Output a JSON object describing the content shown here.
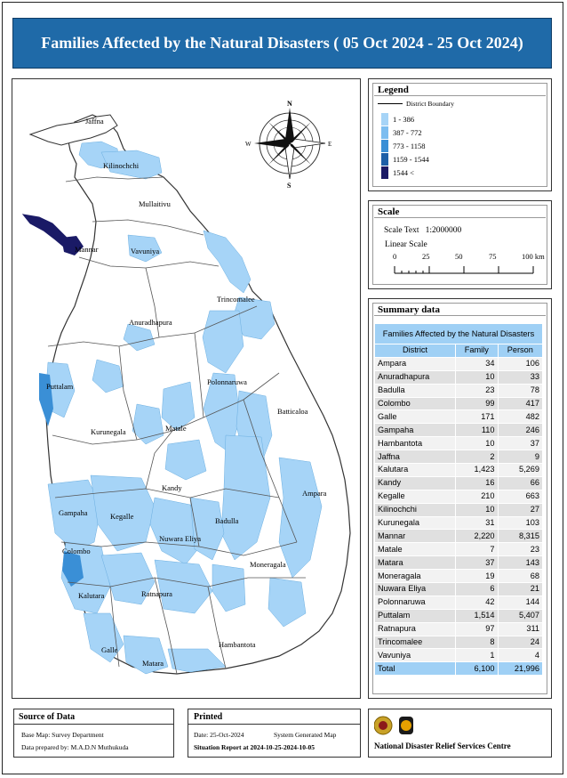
{
  "title": "Families Affected by the Natural Disasters ( 05 Oct 2024 - 25 Oct 2024)",
  "map": {
    "north_arrow": {
      "n": "N",
      "s": "S",
      "e": "E",
      "w": "W"
    },
    "labels": [
      "Jaffna",
      "Kilinochchi",
      "Mullaitivu",
      "Mannar",
      "Vavuniya",
      "Trincomalee",
      "Anuradhapura",
      "Puttalam",
      "Polonnaruwa",
      "Batticaloa",
      "Kurunegala",
      "Matale",
      "Kandy",
      "Gampaha",
      "Kegalle",
      "Ampara",
      "Badulla",
      "Nuwara Eliya",
      "Colombo",
      "Moneragala",
      "Kalutara",
      "Ratnapura",
      "Hambantota",
      "Galle",
      "Matara"
    ],
    "colors": {
      "land": "#ffffff",
      "class1": "#a6d4f7",
      "class2": "#7cbdf0",
      "class3": "#3a8fd6",
      "class4": "#1c5fa8",
      "class5": "#1a1a66",
      "border": "#555555"
    }
  },
  "legend": {
    "title": "Legend",
    "boundary_label": "District Boundary",
    "classes": [
      {
        "label": "1 - 386",
        "color": "#a6d4f7"
      },
      {
        "label": "387 - 772",
        "color": "#7cbdf0"
      },
      {
        "label": "773 - 1158",
        "color": "#3a8fd6"
      },
      {
        "label": "1159 - 1544",
        "color": "#1c5fa8"
      },
      {
        "label": "1544 <",
        "color": "#1a1a66"
      }
    ]
  },
  "scale": {
    "title": "Scale",
    "scale_text_label": "Scale Text",
    "scale_text_value": "1:2000000",
    "linear_label": "Linear Scale",
    "ticks": [
      "0",
      "25",
      "50",
      "75",
      "100 km"
    ]
  },
  "summary": {
    "title": "Summary data",
    "table_title": "Families Affected by the Natural Disasters",
    "headers": [
      "District",
      "Family",
      "Person"
    ],
    "rows": [
      [
        "Ampara",
        "34",
        "106"
      ],
      [
        "Anuradhapura",
        "10",
        "33"
      ],
      [
        "Badulla",
        "23",
        "78"
      ],
      [
        "Colombo",
        "99",
        "417"
      ],
      [
        "Galle",
        "171",
        "482"
      ],
      [
        "Gampaha",
        "110",
        "246"
      ],
      [
        "Hambantota",
        "10",
        "37"
      ],
      [
        "Jaffna",
        "2",
        "9"
      ],
      [
        "Kalutara",
        "1,423",
        "5,269"
      ],
      [
        "Kandy",
        "16",
        "66"
      ],
      [
        "Kegalle",
        "210",
        "663"
      ],
      [
        "Kilinochchi",
        "10",
        "27"
      ],
      [
        "Kurunegala",
        "31",
        "103"
      ],
      [
        "Mannar",
        "2,220",
        "8,315"
      ],
      [
        "Matale",
        "7",
        "23"
      ],
      [
        "Matara",
        "37",
        "143"
      ],
      [
        "Moneragala",
        "19",
        "68"
      ],
      [
        "Nuwara Eliya",
        "6",
        "21"
      ],
      [
        "Polonnaruwa",
        "42",
        "144"
      ],
      [
        "Puttalam",
        "1,514",
        "5,407"
      ],
      [
        "Ratnapura",
        "97",
        "311"
      ],
      [
        "Trincomalee",
        "8",
        "24"
      ],
      [
        "Vavuniya",
        "1",
        "4"
      ]
    ],
    "total": [
      "Total",
      "6,100",
      "21,996"
    ]
  },
  "source": {
    "title": "Source of Data",
    "base_map": "Base Map: Survey Department",
    "prepared_by": "Data prepared by: M.A.D.N Muthukuda"
  },
  "printed": {
    "title": "Printed",
    "date": "Date: 25-Oct-2024",
    "system": "System Generated Map",
    "report": "Situation Report at 2024-10-25-2024-10-05"
  },
  "org": {
    "name": "National Disaster Relief Services Centre"
  }
}
